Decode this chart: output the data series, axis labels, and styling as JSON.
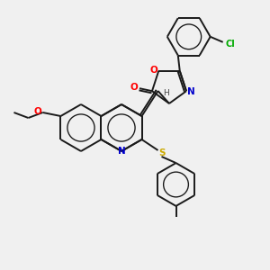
{
  "bg_color": "#f0f0f0",
  "bond_color": "#1a1a1a",
  "atom_colors": {
    "O": "#ff0000",
    "N": "#0000cc",
    "S": "#ccaa00",
    "Cl": "#00aa00",
    "H": "#444444",
    "C": "#1a1a1a"
  },
  "figsize": [
    3.0,
    3.0
  ],
  "dpi": 100,
  "lw": 1.4
}
